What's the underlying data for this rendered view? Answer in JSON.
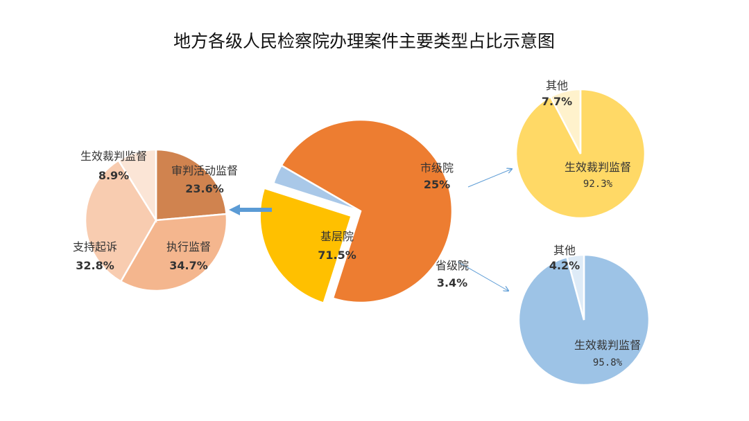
{
  "chart_data": [
    {
      "type": "pie",
      "id": "main",
      "title": "地方各级人民检察院办理案件主要类型占比示意图",
      "categories": [
        "基层院",
        "市级院",
        "省级院"
      ],
      "values": [
        71.5,
        25,
        3.4
      ],
      "value_labels": [
        "71.5%",
        "25%",
        "3.4%"
      ],
      "colors": [
        "#ED7D31",
        "#FFC000",
        "#A9C8E8"
      ],
      "exploded": [
        "市级院"
      ]
    },
    {
      "type": "pie",
      "id": "basic",
      "categories": [
        "审判活动监督",
        "执行监督",
        "支持起诉",
        "生效裁判监督"
      ],
      "values": [
        23.6,
        34.7,
        32.8,
        8.9
      ],
      "value_labels": [
        "23.6%",
        "34.7%",
        "32.8%",
        "8.9%"
      ],
      "colors": [
        "#D0834F",
        "#F4B68E",
        "#F8CCB0",
        "#FBE5D6"
      ]
    },
    {
      "type": "pie",
      "id": "city",
      "categories": [
        "生效裁判监督",
        "其他"
      ],
      "values": [
        92.3,
        7.7
      ],
      "value_labels": [
        "92.3%",
        "7.7%"
      ],
      "colors": [
        "#FFD966",
        "#FFF2CC"
      ]
    },
    {
      "type": "pie",
      "id": "province",
      "categories": [
        "生效裁判监督",
        "其他"
      ],
      "values": [
        95.8,
        4.2
      ],
      "value_labels": [
        "95.8%",
        "4.2%"
      ],
      "colors": [
        "#9DC3E6",
        "#DEEBF7"
      ]
    }
  ]
}
